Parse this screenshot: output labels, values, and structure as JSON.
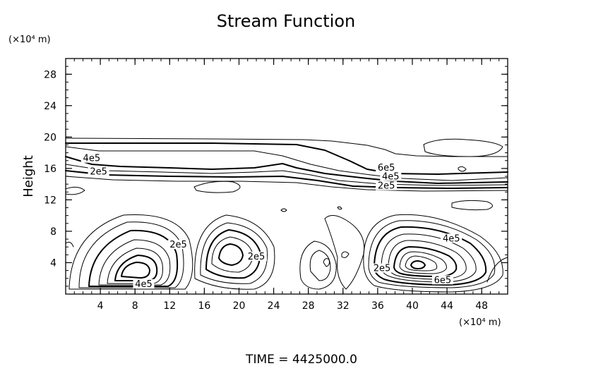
{
  "chart_data": {
    "type": "contour",
    "title": "Stream Function",
    "ylabel": "Height",
    "x_unit": "(×10⁴ m)",
    "y_unit": "(×10⁴ m)",
    "xlim": [
      0,
      51
    ],
    "ylim": [
      0,
      30
    ],
    "xticks": [
      4,
      8,
      12,
      16,
      20,
      24,
      28,
      32,
      36,
      40,
      44,
      48
    ],
    "yticks": [
      4,
      8,
      12,
      16,
      20,
      24,
      28
    ],
    "contour_labels": [
      {
        "text": "4e5",
        "x": 3,
        "y": 17
      },
      {
        "text": "2e5",
        "x": 3.8,
        "y": 15.3
      },
      {
        "text": "6e5",
        "x": 37,
        "y": 15.8
      },
      {
        "text": "4e5",
        "x": 37.5,
        "y": 14.7
      },
      {
        "text": "2e5",
        "x": 37,
        "y": 13.5
      },
      {
        "text": "2e5",
        "x": 13,
        "y": 6
      },
      {
        "text": "4e5",
        "x": 9,
        "y": 1
      },
      {
        "text": "2e5",
        "x": 22,
        "y": 4.5
      },
      {
        "text": "2e5",
        "x": 36.5,
        "y": 3
      },
      {
        "text": "4e5",
        "x": 44.5,
        "y": 6.8
      },
      {
        "text": "6e5",
        "x": 43.5,
        "y": 1.5
      }
    ],
    "grid": false,
    "footer": "TIME  =  4425000.0",
    "colors": {
      "ink": "#000000",
      "background": "#ffffff"
    }
  }
}
